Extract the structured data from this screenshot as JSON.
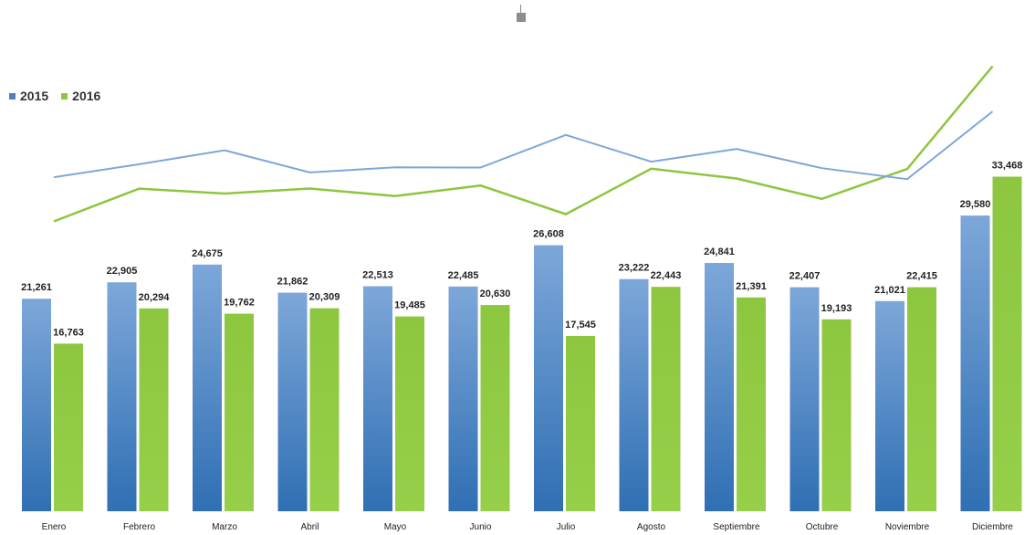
{
  "chart_data": {
    "type": "bar",
    "categories": [
      "Enero",
      "Febrero",
      "Marzo",
      "Abril",
      "Mayo",
      "Junio",
      "Julio",
      "Agosto",
      "Septiembre",
      "Octubre",
      "Noviembre",
      "Diciembre"
    ],
    "series": [
      {
        "name": "2015",
        "color": "#4f81bd",
        "values": [
          21261,
          22905,
          24675,
          21862,
          22513,
          22485,
          26608,
          23222,
          24841,
          22407,
          21021,
          29580
        ]
      },
      {
        "name": "2016",
        "color": "#8dc63f",
        "values": [
          16763,
          20294,
          19762,
          20309,
          19485,
          20630,
          17545,
          22443,
          21391,
          19193,
          22415,
          33468
        ]
      }
    ],
    "value_labels": {
      "2015": [
        "21,261",
        "22,905",
        "24,675",
        "21,862",
        "22,513",
        "22,485",
        "26,608",
        "23,222",
        "24,841",
        "22,407",
        "21,021",
        "29,580"
      ],
      "2016": [
        "16,763",
        "20,294",
        "19,762",
        "20,309",
        "19,485",
        "20,630",
        "17,545",
        "22,443",
        "21,391",
        "19,193",
        "22,415",
        "33,468"
      ]
    },
    "overlay": "line",
    "legend": "top-left",
    "grid": false,
    "axis_lines": false
  }
}
